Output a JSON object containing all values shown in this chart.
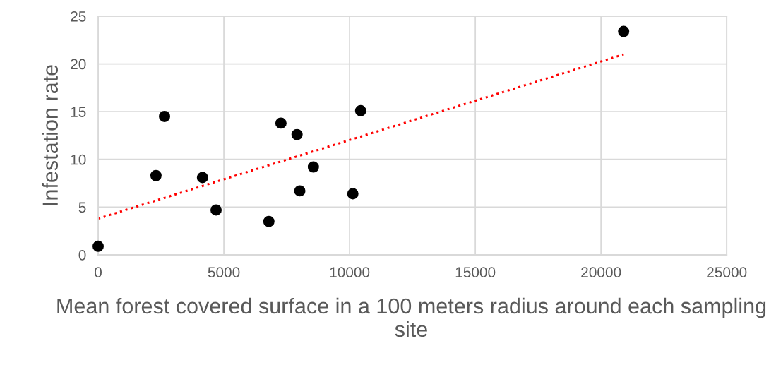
{
  "chart_data": {
    "type": "scatter",
    "xlabel": "Mean forest covered surface in a 100 meters radius around each sampling site",
    "ylabel": "Infestation rate",
    "xlim": [
      0,
      25000
    ],
    "xticks": [
      0,
      5000,
      10000,
      15000,
      20000,
      25000
    ],
    "ylim": [
      0,
      25
    ],
    "yticks": [
      0,
      5,
      10,
      15,
      20,
      25
    ],
    "grid": true,
    "marker": "circle",
    "series": [
      {
        "color": "#000000",
        "x": [
          0,
          2300,
          2640,
          4150,
          4690,
          6790,
          7270,
          7910,
          8020,
          8560,
          10130,
          10440,
          20900
        ],
        "values": [
          0.9,
          8.3,
          14.5,
          8.1,
          4.7,
          3.5,
          13.8,
          12.6,
          6.7,
          9.2,
          6.4,
          15.1,
          23.4
        ]
      },
      {
        "type": "line",
        "color": "#ff0000",
        "line_style": "dotted",
        "marker": "none",
        "x": [
          0,
          20900
        ],
        "values": [
          3.8,
          21.0
        ]
      }
    ]
  }
}
